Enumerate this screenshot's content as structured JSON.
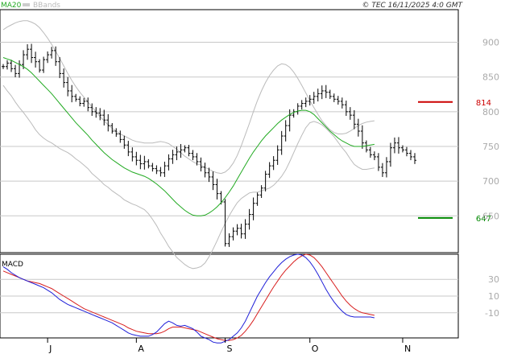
{
  "header": {
    "ma_label": "MA20",
    "bb_label": "BBands",
    "copyright": "© TEC 16/11/2025 4:0 GMT"
  },
  "colors": {
    "ma": "#22aa22",
    "bbands": "#bbbbbb",
    "price": "#000000",
    "resistance": "#cc0000",
    "support": "#008800",
    "macd": "#1f1fd8",
    "signal": "#d81f1f",
    "grid": "#c8c8c8",
    "frame": "#000000",
    "axis_text": "#aaaaaa"
  },
  "chart_data": [
    {
      "type": "ohlc",
      "name": "price",
      "y_ticks": [
        650,
        700,
        750,
        800,
        850,
        900
      ],
      "ylim": [
        597,
        947
      ],
      "grid": true,
      "x_labels": [
        {
          "label": "J",
          "bar": 11
        },
        {
          "label": "A",
          "bar": 33
        },
        {
          "label": "S",
          "bar": 55
        },
        {
          "label": "O",
          "bar": 76
        },
        {
          "label": "N",
          "bar": 99
        }
      ],
      "levels": [
        {
          "name": "resistance",
          "value": 814,
          "label": "814"
        },
        {
          "name": "support",
          "value": 647,
          "label": "647"
        }
      ],
      "close": [
        865,
        870,
        862,
        855,
        868,
        882,
        890,
        878,
        872,
        860,
        875,
        882,
        888,
        872,
        855,
        842,
        830,
        822,
        818,
        812,
        815,
        806,
        800,
        798,
        795,
        788,
        780,
        772,
        768,
        760,
        752,
        742,
        735,
        730,
        725,
        728,
        722,
        718,
        715,
        712,
        722,
        732,
        738,
        742,
        745,
        748,
        740,
        735,
        728,
        720,
        712,
        706,
        695,
        682,
        670,
        610,
        620,
        628,
        632,
        624,
        638,
        652,
        668,
        680,
        690,
        710,
        722,
        730,
        745,
        765,
        780,
        795,
        800,
        808,
        812,
        815,
        818,
        822,
        826,
        830,
        828,
        822,
        818,
        815,
        810,
        800,
        795,
        782,
        772,
        755,
        745,
        738,
        735,
        720,
        712,
        728,
        748,
        755,
        748,
        745,
        740,
        735,
        730
      ],
      "ma20": [
        878,
        876,
        874,
        871,
        868,
        865,
        861,
        856,
        850,
        844,
        838,
        832,
        826,
        819,
        812,
        805,
        798,
        791,
        784,
        778,
        772,
        766,
        759,
        753,
        747,
        741,
        736,
        731,
        727,
        723,
        719,
        716,
        713,
        711,
        709,
        707,
        704,
        700,
        696,
        691,
        686,
        680,
        674,
        668,
        663,
        658,
        654,
        651,
        650,
        650,
        651,
        654,
        658,
        663,
        669,
        676,
        684,
        693,
        703,
        713,
        723,
        733,
        742,
        750,
        758,
        765,
        771,
        777,
        783,
        788,
        792,
        796,
        799,
        801,
        802,
        802,
        800,
        796,
        790,
        784,
        778,
        772,
        767,
        762,
        758,
        755,
        752,
        750,
        750,
        750,
        751,
        752,
        753
      ],
      "bb_upper": [
        918,
        922,
        925,
        928,
        930,
        931,
        931,
        929,
        926,
        921,
        914,
        906,
        897,
        887,
        877,
        866,
        855,
        845,
        836,
        828,
        821,
        814,
        807,
        800,
        793,
        787,
        781,
        776,
        772,
        768,
        765,
        762,
        759,
        757,
        756,
        755,
        755,
        755,
        756,
        757,
        756,
        754,
        750,
        746,
        741,
        736,
        732,
        728,
        725,
        723,
        720,
        717,
        714,
        712,
        711,
        713,
        718,
        726,
        737,
        751,
        767,
        783,
        800,
        816,
        830,
        842,
        852,
        860,
        866,
        869,
        868,
        864,
        857,
        848,
        838,
        827,
        816,
        806,
        796,
        787,
        780,
        774,
        770,
        768,
        768,
        769,
        772,
        776,
        780,
        783,
        785,
        786,
        787
      ],
      "bb_lower": [
        838,
        830,
        823,
        814,
        806,
        799,
        791,
        783,
        774,
        767,
        762,
        758,
        755,
        751,
        747,
        744,
        741,
        737,
        732,
        728,
        723,
        718,
        711,
        706,
        701,
        695,
        691,
        686,
        682,
        678,
        673,
        670,
        667,
        665,
        662,
        659,
        653,
        645,
        636,
        625,
        616,
        606,
        598,
        590,
        585,
        580,
        576,
        574,
        575,
        577,
        582,
        591,
        602,
        614,
        627,
        639,
        650,
        660,
        669,
        675,
        679,
        683,
        684,
        684,
        686,
        688,
        690,
        694,
        700,
        707,
        716,
        728,
        741,
        754,
        766,
        777,
        784,
        786,
        784,
        781,
        776,
        770,
        764,
        756,
        748,
        741,
        732,
        724,
        720,
        717,
        717,
        718,
        719
      ],
      "bb_upper_rev": [],
      "bb_lower_rev": []
    },
    {
      "type": "line",
      "name": "MACD",
      "label": "MACD",
      "y_ticks": [
        30,
        10,
        -10
      ],
      "y_tick_labels": [
        "30",
        "10",
        "-10"
      ],
      "ylim": [
        -40,
        60
      ],
      "series": [
        {
          "name": "macd",
          "values": [
            45,
            42,
            38,
            35,
            32,
            30,
            28,
            26,
            24,
            22,
            20,
            17,
            14,
            10,
            6,
            3,
            0,
            -2,
            -4,
            -6,
            -8,
            -10,
            -12,
            -14,
            -16,
            -18,
            -20,
            -22,
            -25,
            -28,
            -31,
            -34,
            -36,
            -37,
            -38,
            -38,
            -38,
            -36,
            -33,
            -28,
            -23,
            -20,
            -22,
            -25,
            -26,
            -25,
            -27,
            -29,
            -33,
            -38,
            -40,
            -42,
            -45,
            -46,
            -46,
            -44,
            -42,
            -38,
            -34,
            -28,
            -20,
            -10,
            0,
            10,
            18,
            26,
            33,
            39,
            45,
            50,
            54,
            57,
            59,
            60,
            59,
            56,
            51,
            44,
            36,
            27,
            18,
            10,
            3,
            -3,
            -8,
            -12,
            -14,
            -15,
            -15,
            -15,
            -15,
            -15,
            -16
          ]
        },
        {
          "name": "signal",
          "values": [
            40,
            38,
            36,
            34,
            32,
            30,
            28,
            27,
            26,
            25,
            23,
            21,
            19,
            16,
            13,
            10,
            7,
            4,
            1,
            -2,
            -5,
            -7,
            -9,
            -11,
            -13,
            -15,
            -17,
            -19,
            -21,
            -23,
            -25,
            -28,
            -30,
            -32,
            -33,
            -34,
            -35,
            -35,
            -35,
            -34,
            -32,
            -29,
            -27,
            -27,
            -27,
            -28,
            -29,
            -30,
            -31,
            -33,
            -35,
            -37,
            -39,
            -41,
            -42,
            -43,
            -43,
            -42,
            -40,
            -37,
            -32,
            -26,
            -19,
            -11,
            -3,
            5,
            13,
            21,
            28,
            35,
            41,
            46,
            51,
            55,
            58,
            60,
            59,
            56,
            51,
            45,
            38,
            31,
            24,
            17,
            10,
            4,
            -1,
            -5,
            -8,
            -10,
            -11,
            -12,
            -13
          ]
        }
      ]
    }
  ]
}
